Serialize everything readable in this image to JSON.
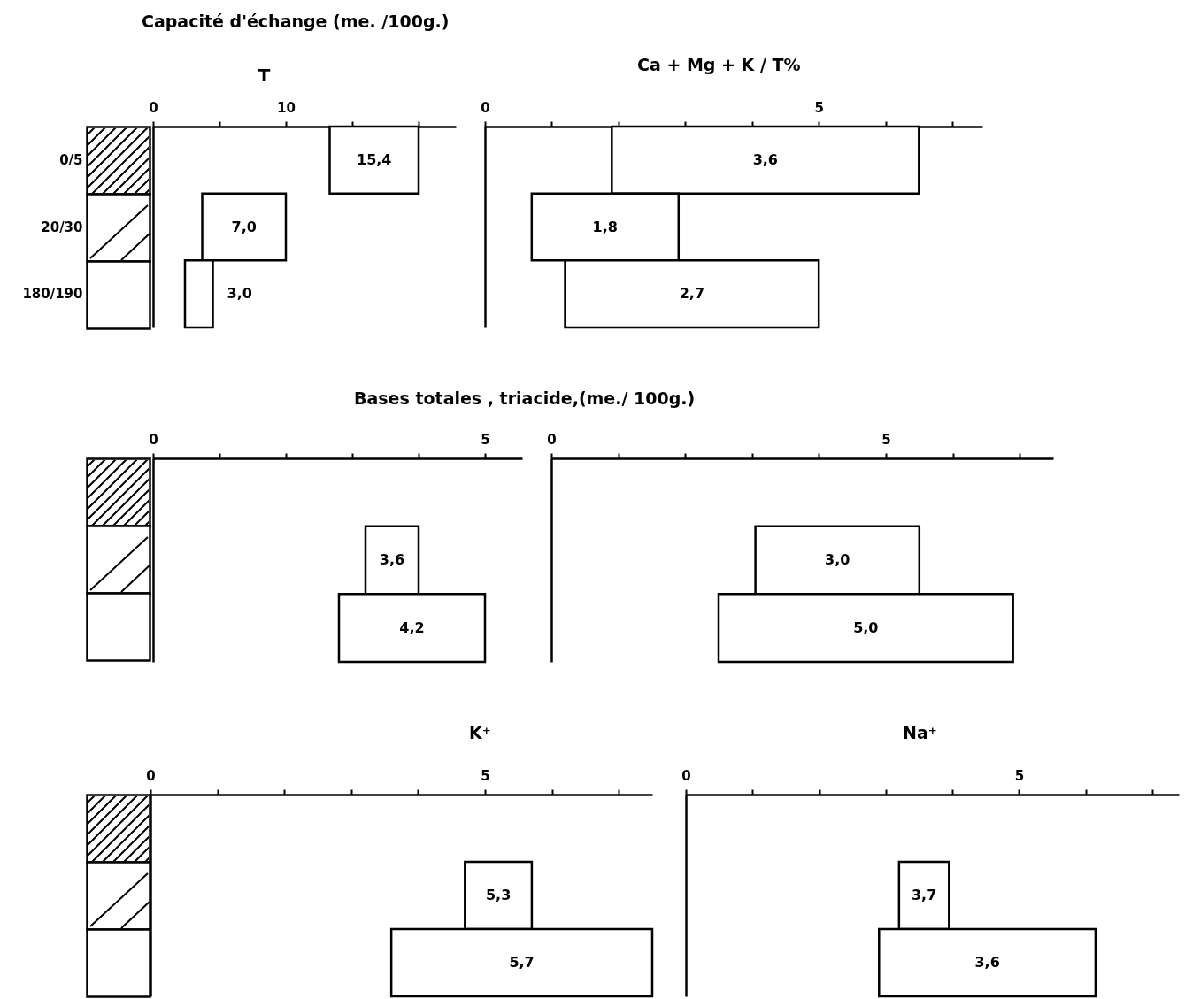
{
  "chart_data": [
    {
      "type": "bar",
      "orientation": "horizontal",
      "title": "Capacité d'échange (me. /100g.)",
      "xlabel": "T",
      "categories": [
        "0/5",
        "20/30",
        "180/190"
      ],
      "base": [
        13.3,
        3.7,
        2.4
      ],
      "values": [
        6.7,
        6.3,
        2.1
      ],
      "annotations": [
        "15,4",
        "7,0",
        "3,0"
      ],
      "color": "#ffffff",
      "xlim": [
        0,
        22.8
      ],
      "xticks": [
        0,
        {
          "value": 5,
          "label": null
        },
        10,
        {
          "value": 15,
          "label": null
        },
        {
          "value": 20,
          "label": null
        }
      ],
      "grid": false
    },
    {
      "type": "bar",
      "orientation": "horizontal",
      "title": "Ca + Mg + K / T%",
      "categories": [
        null,
        null,
        null
      ],
      "base": [
        1.9,
        0.7,
        1.2
      ],
      "values": [
        4.6,
        2.2,
        3.8
      ],
      "annotations": [
        "3,6",
        "1,8",
        "2,7"
      ],
      "color": "#ffffff",
      "xlim": [
        0,
        7.45
      ],
      "xticks": [
        0,
        {
          "value": 1,
          "label": null
        },
        {
          "value": 2,
          "label": null
        },
        {
          "value": 3,
          "label": null
        },
        {
          "value": 4,
          "label": null
        },
        5,
        {
          "value": 6,
          "label": null
        },
        {
          "value": 7,
          "label": null
        }
      ],
      "grid": false
    },
    {
      "type": "bar",
      "orientation": "horizontal",
      "title": "Bases totales , triacide,(me./ 100g.)",
      "categories": [
        null,
        null,
        null
      ],
      "base": [
        null,
        3.2,
        2.8
      ],
      "values": [
        null,
        0.8,
        2.2
      ],
      "annotations": [
        "3,6",
        "4,2"
      ],
      "color": "#ffffff",
      "xlim": [
        0,
        5.56
      ],
      "xticks": [
        0,
        {
          "value": 1,
          "label": null
        },
        {
          "value": 2,
          "label": null
        },
        {
          "value": 3,
          "label": null
        },
        {
          "value": 4,
          "label": null
        },
        5
      ],
      "grid": false
    },
    {
      "type": "bar",
      "orientation": "horizontal",
      "categories": [
        null,
        null,
        null
      ],
      "base": [
        null,
        3.05,
        2.5
      ],
      "values": [
        null,
        2.45,
        4.4
      ],
      "annotations": [
        "3,0",
        "5,0"
      ],
      "color": "#ffffff",
      "xlim": [
        0,
        7.5
      ],
      "xticks": [
        0,
        {
          "value": 1,
          "label": null
        },
        {
          "value": 2,
          "label": null
        },
        {
          "value": 3,
          "label": null
        },
        {
          "value": 4,
          "label": null
        },
        5,
        {
          "value": 6,
          "label": null
        },
        {
          "value": 7,
          "label": null
        }
      ],
      "grid": false
    },
    {
      "type": "bar",
      "orientation": "horizontal",
      "title": "K⁺",
      "categories": [
        null,
        null,
        null
      ],
      "base": [
        null,
        4.7,
        3.6
      ],
      "values": [
        null,
        1.0,
        3.9
      ],
      "annotations": [
        "5,3",
        "5,7"
      ],
      "color": "#ffffff",
      "xlim": [
        0,
        7.5
      ],
      "xticks": [
        0,
        {
          "value": 1,
          "label": null
        },
        {
          "value": 2,
          "label": null
        },
        {
          "value": 3,
          "label": null
        },
        {
          "value": 4,
          "label": null
        },
        5,
        {
          "value": 6,
          "label": null
        },
        {
          "value": 7,
          "label": null
        }
      ],
      "grid": false
    },
    {
      "type": "bar",
      "orientation": "horizontal",
      "title": "Na⁺",
      "categories": [
        null,
        null,
        null
      ],
      "base": [
        null,
        3.2,
        2.9
      ],
      "values": [
        null,
        0.75,
        3.25
      ],
      "annotations": [
        "3,7",
        "3,6"
      ],
      "color": "#ffffff",
      "xlim": [
        0,
        7.4
      ],
      "xticks": [
        0,
        {
          "value": 1,
          "label": null
        },
        {
          "value": 2,
          "label": null
        },
        {
          "value": 3,
          "label": null
        },
        {
          "value": 4,
          "label": null
        },
        5,
        {
          "value": 6,
          "label": null
        },
        {
          "value": 7,
          "label": null
        }
      ],
      "grid": false
    }
  ]
}
